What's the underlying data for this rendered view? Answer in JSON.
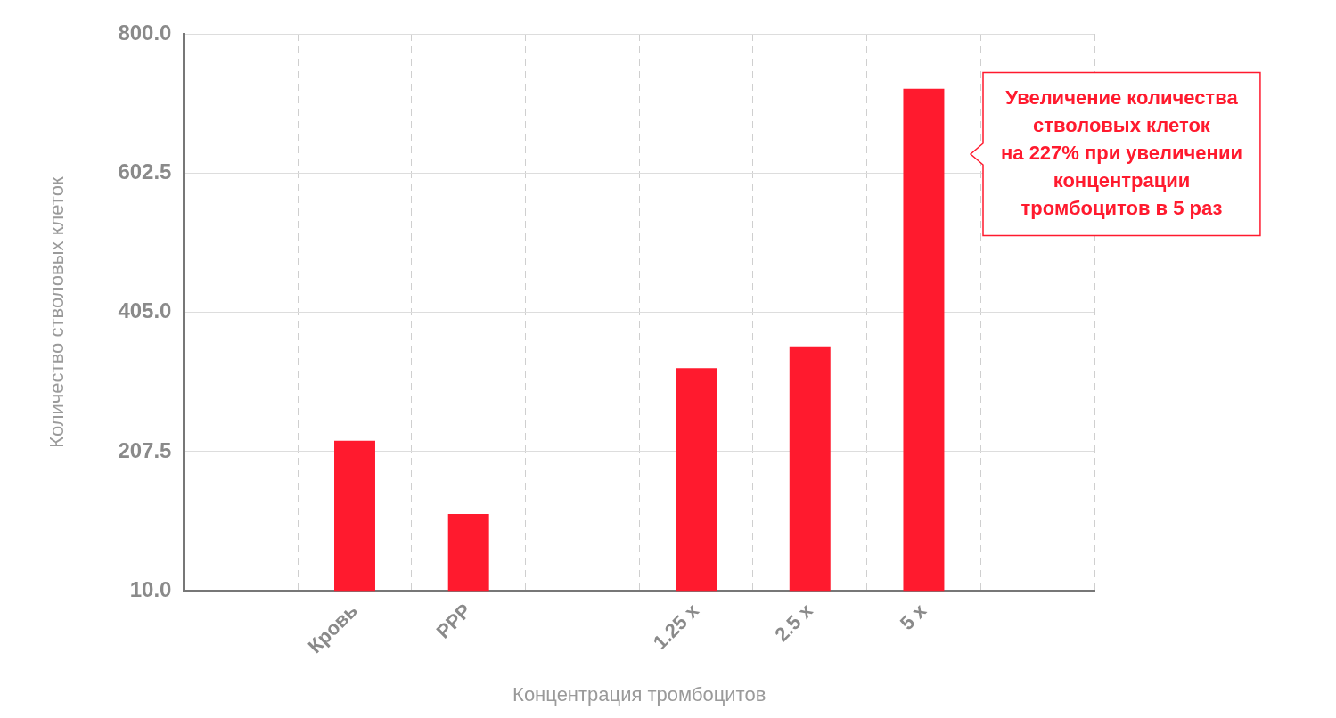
{
  "chart_data": {
    "type": "bar",
    "xlabel": "Концентрация тромбоцитов",
    "ylabel": "Количество стволовых клеток",
    "categories": [
      null,
      "Кровь",
      "PPP",
      null,
      "1.25 x",
      "2.5 x",
      "5 x",
      null
    ],
    "values": [
      null,
      223,
      119,
      null,
      326,
      357,
      722,
      null
    ],
    "color": "#ff1a2e",
    "ylim": [
      10,
      800
    ],
    "yticks": [
      {
        "value": 10,
        "label": "10.0"
      },
      {
        "value": 207.5,
        "label": "207.5"
      },
      {
        "value": 405,
        "label": "405.0"
      },
      {
        "value": 602.5,
        "label": "602.5"
      },
      {
        "value": 800,
        "label": "800.0"
      }
    ],
    "grid": true,
    "annotations": [
      "Увеличение количества\nстволовых клеток\nна 227% при увеличении\nконцентрации\nтромбоцитов в 5 раз"
    ]
  }
}
